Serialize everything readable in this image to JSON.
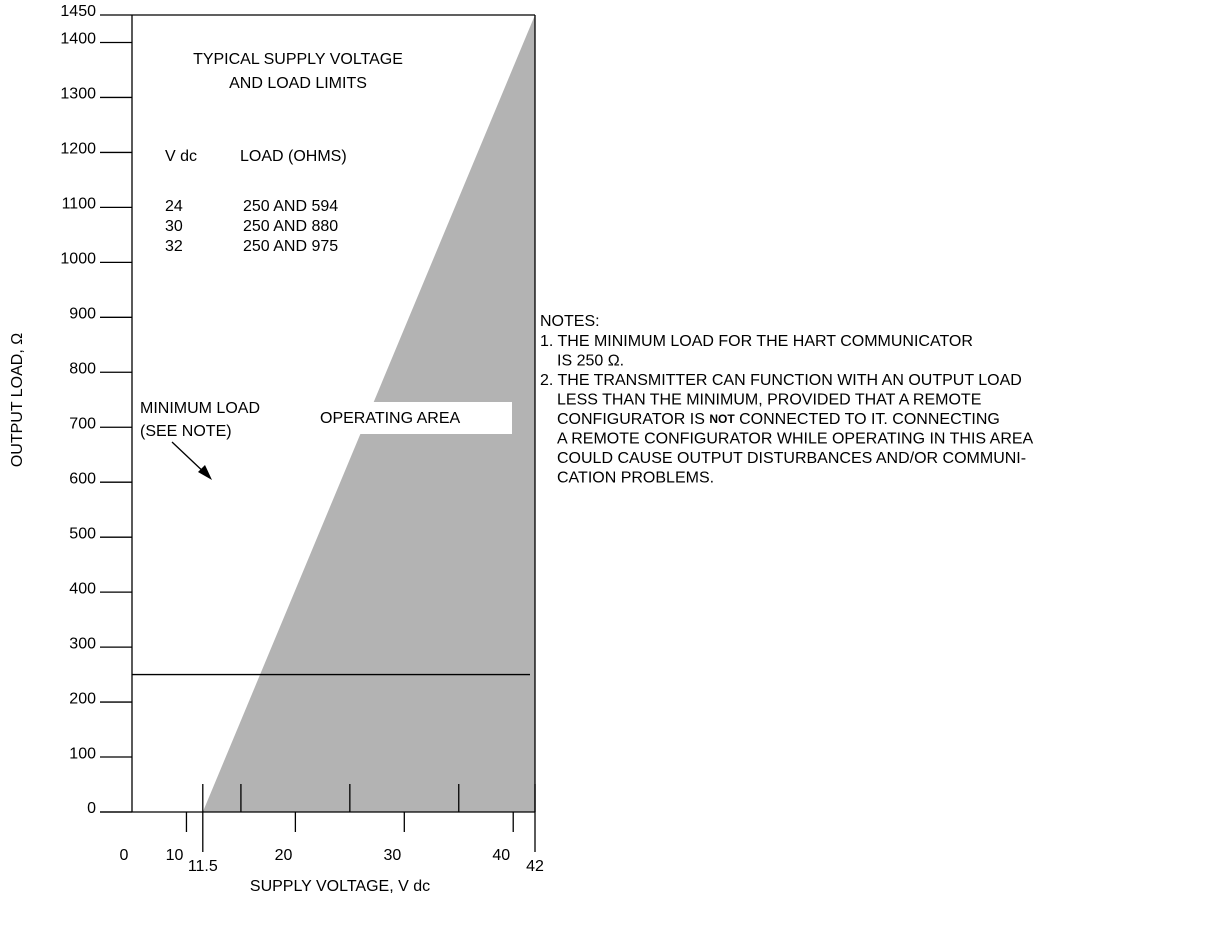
{
  "chart_data": {
    "type": "area",
    "title": [
      "TYPICAL SUPPLY VOLTAGE",
      "AND LOAD LIMITS"
    ],
    "xlabel": "SUPPLY VOLTAGE, V dc",
    "ylabel": "OUTPUT LOAD, Ω",
    "x": [
      11.5,
      42
    ],
    "values": [
      0,
      1450
    ],
    "color": "#b3b3b3",
    "xlim": [
      5,
      42
    ],
    "ylim": [
      0,
      1450
    ],
    "yticks": [
      0,
      100,
      200,
      300,
      400,
      500,
      600,
      700,
      800,
      900,
      1000,
      1100,
      1200,
      1300,
      1400,
      1450
    ],
    "xticks": [
      10,
      20,
      30,
      40
    ],
    "xminor_ticks": [
      15,
      25,
      35
    ],
    "xmarked_ticks": [
      11.5,
      42
    ],
    "x_origin_label": "0",
    "min_load": {
      "value": 250,
      "label": [
        "MINIMUM LOAD",
        "(SEE NOTE)"
      ]
    },
    "region_label": "OPERATING AREA",
    "table": {
      "header": [
        "V dc",
        "LOAD (OHMS)"
      ],
      "rows": [
        [
          "24",
          "250 AND 594"
        ],
        [
          "30",
          "250 AND 880"
        ],
        [
          "32",
          "250 AND 975"
        ]
      ]
    },
    "notes": {
      "title": "NOTES:",
      "lines": [
        "1. THE MINIMUM LOAD FOR THE HART COMMUNICATOR",
        "IS 250 Ω.",
        "2. THE TRANSMITTER CAN FUNCTION WITH AN OUTPUT LOAD",
        "LESS THAN THE MINIMUM, PROVIDED THAT A REMOTE",
        [
          "CONFIGURATOR IS ",
          "NOT",
          " CONNECTED TO IT. CONNECTING"
        ],
        "A REMOTE CONFIGURATOR WHILE OPERATING IN THIS AREA",
        "COULD CAUSE OUTPUT DISTURBANCES AND/OR COMMUNI-",
        "CATION PROBLEMS."
      ]
    }
  }
}
